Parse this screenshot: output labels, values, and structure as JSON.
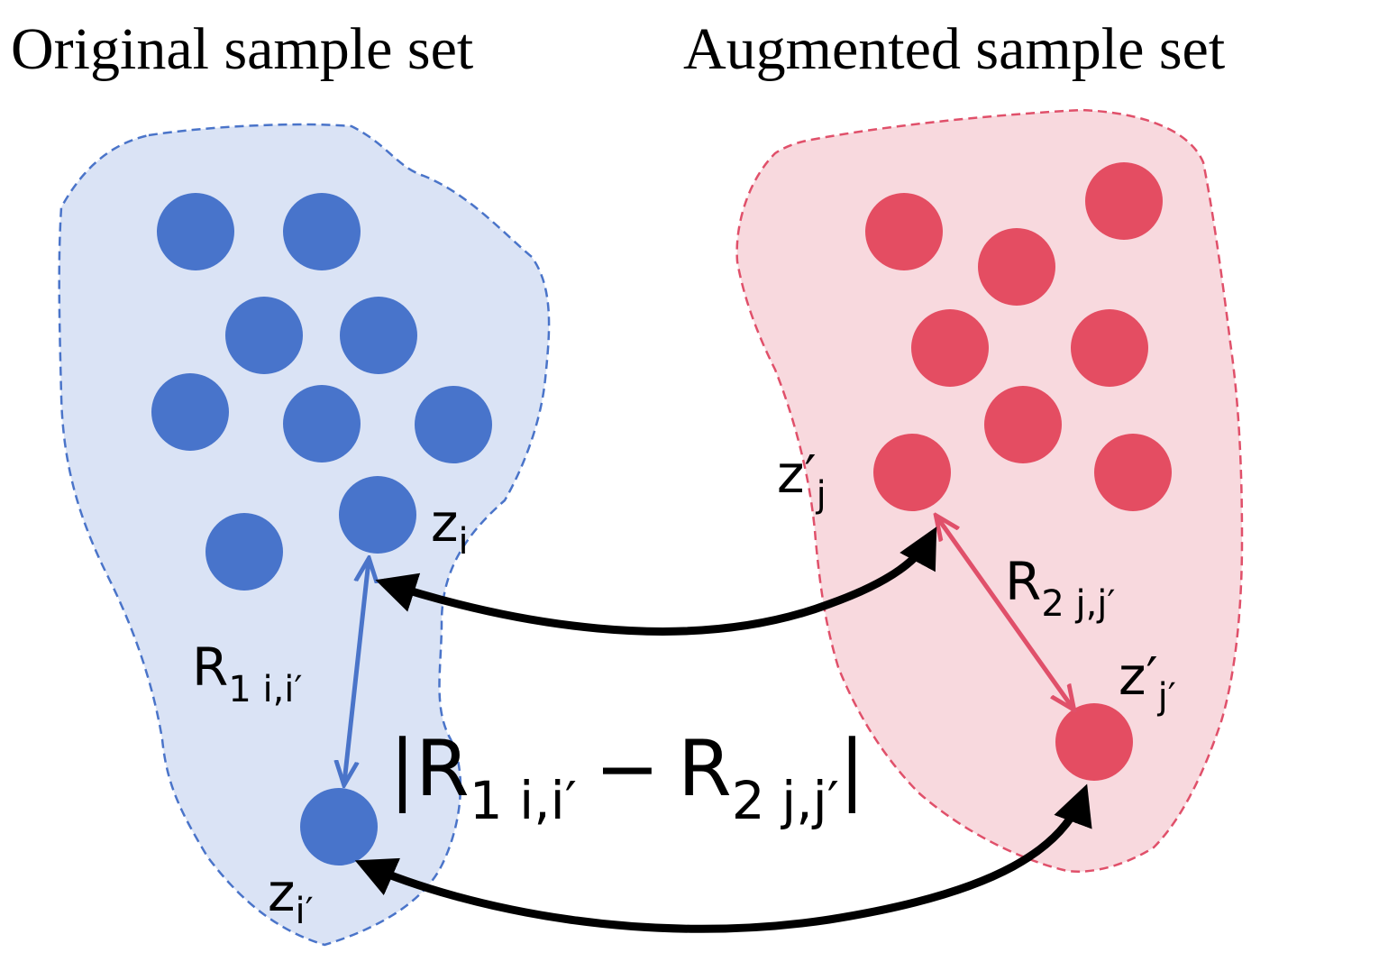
{
  "titles": {
    "original": "Original sample set",
    "augmented": "Augmented sample set"
  },
  "colors": {
    "original_fill": "#dae3f5",
    "original_stroke": "#4a74c9",
    "original_dot": "#4874cb",
    "augmented_fill": "#f8d9de",
    "augmented_stroke": "#e0506a",
    "augmented_dot": "#e44d62",
    "arrow": "#000000"
  },
  "labels": {
    "zi": {
      "base": "z",
      "sub": "i"
    },
    "zi_prime": {
      "base": "z",
      "sub": "i′"
    },
    "zj_prime": {
      "base": "z′",
      "sub": "j"
    },
    "zjp_prime": {
      "base": "z′",
      "sub": "j′"
    },
    "r1": {
      "base": "R",
      "sub": "1 i,i′"
    },
    "r2": {
      "base": "R",
      "sub": "2 j,j′"
    },
    "difference": {
      "open": "|",
      "r1_base": "R",
      "r1_sub": "1 i,i′",
      "minus": "−",
      "r2_base": "R",
      "r2_sub": "2 j,j′",
      "close": "|"
    }
  }
}
